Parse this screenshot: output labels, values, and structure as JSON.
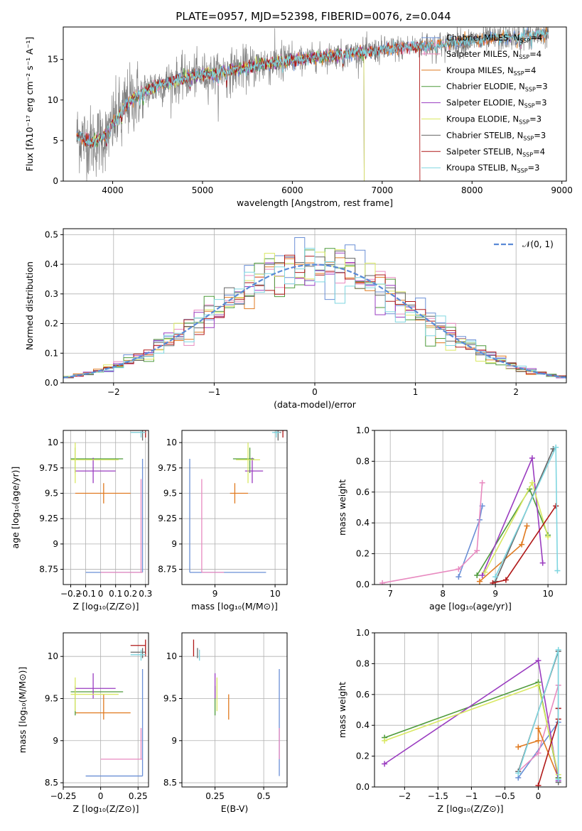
{
  "figure": {
    "title": "PLATE=0957, MJD=52398, FIBERID=0076, z=0.044"
  },
  "colors": {
    "Chabrier MILES": "#6a8fd6",
    "Salpeter MILES": "#e88ac0",
    "Kroupa MILES": "#e07a20",
    "Chabrier ELODIE": "#4d9a3a",
    "Salpeter ELODIE": "#9a3cc0",
    "Kroupa ELODIE": "#d9e862",
    "Chabrier STELIB": "#666666",
    "Salpeter STELIB": "#b01818",
    "Kroupa STELIB": "#7fd6e0",
    "data": "#808080",
    "gaussian": "#5a8ad6"
  },
  "chart_data": [
    {
      "id": "spectrum",
      "type": "line",
      "xlabel": "wavelength [Angstrom, rest frame]",
      "ylabel": "Flux [fλ10⁻¹⁷ erg cm⁻² s⁻¹ A⁻¹]",
      "xlim": [
        3450,
        9050
      ],
      "ylim": [
        0,
        19
      ],
      "xticks": [
        4000,
        5000,
        6000,
        7000,
        8000,
        9000
      ],
      "yticks": [
        0,
        5,
        10,
        15
      ],
      "grid": false,
      "legend_position": "right",
      "continuum": {
        "x": [
          3650,
          3700,
          3800,
          3900,
          4000,
          4100,
          4200,
          4300,
          4400,
          4500,
          4700,
          4900,
          5100,
          5300,
          5500,
          5700,
          5900,
          6100,
          6300,
          6500,
          6700,
          6900,
          7100,
          7300,
          7500,
          7700,
          7900,
          8100,
          8300,
          8500,
          8700,
          8800
        ],
        "y": [
          5.5,
          5.0,
          4.8,
          5.5,
          7.0,
          8.6,
          10.0,
          10.8,
          11.3,
          11.8,
          12.4,
          13.0,
          13.2,
          13.6,
          14.0,
          14.5,
          14.7,
          15.0,
          15.3,
          15.6,
          15.8,
          16.0,
          16.3,
          16.5,
          16.7,
          16.9,
          17.2,
          17.4,
          17.6,
          17.8,
          18.0,
          18.1
        ]
      },
      "legend": [
        {
          "label": "Chabrier MILES, N",
          "sub": "SSP",
          "tail": "=4"
        },
        {
          "label": "Salpeter MILES, N",
          "sub": "SSP",
          "tail": "=4"
        },
        {
          "label": "Kroupa MILES, N",
          "sub": "SSP",
          "tail": "=4"
        },
        {
          "label": "Chabrier ELODIE, N",
          "sub": "SSP",
          "tail": "=3"
        },
        {
          "label": "Salpeter ELODIE, N",
          "sub": "SSP",
          "tail": "=3"
        },
        {
          "label": "Kroupa ELODIE, N",
          "sub": "SSP",
          "tail": "=3"
        },
        {
          "label": "Chabrier STELIB, N",
          "sub": "SSP",
          "tail": "=3"
        },
        {
          "label": "Salpeter STELIB, N",
          "sub": "SSP",
          "tail": "=4"
        },
        {
          "label": "Kroupa STELIB, N",
          "sub": "SSP",
          "tail": "=3"
        }
      ],
      "series": [
        {
          "name": "Chabrier MILES, NSSP=4",
          "x_range": [
            3600,
            8850
          ]
        },
        {
          "name": "Salpeter MILES, NSSP=4",
          "x_range": [
            3600,
            8850
          ]
        },
        {
          "name": "Kroupa MILES, NSSP=4",
          "x_range": [
            3600,
            8850
          ]
        },
        {
          "name": "Chabrier ELODIE, NSSP=3",
          "x_range": [
            3700,
            6800
          ]
        },
        {
          "name": "Salpeter ELODIE, NSSP=3",
          "x_range": [
            3700,
            6800
          ]
        },
        {
          "name": "Kroupa ELODIE, NSSP=3",
          "x_range": [
            3700,
            6800
          ]
        },
        {
          "name": "Chabrier STELIB, NSSP=3",
          "x_range": [
            3600,
            8850
          ]
        },
        {
          "name": "Salpeter STELIB, NSSP=4",
          "x_range": [
            3600,
            7420
          ]
        },
        {
          "name": "Kroupa STELIB, NSSP=3",
          "x_range": [
            3600,
            8850
          ]
        }
      ]
    },
    {
      "id": "residuals",
      "type": "line",
      "xlabel": "(data-model)/error",
      "ylabel": "Normed distribution",
      "xlim": [
        -2.5,
        2.5
      ],
      "ylim": [
        0,
        0.52
      ],
      "xticks": [
        -2,
        -1,
        0,
        1,
        2
      ],
      "yticks": [
        0.0,
        0.1,
        0.2,
        0.3,
        0.4,
        0.5
      ],
      "grid": true,
      "legend_position": "top-right",
      "legend": [
        "𝒩(0, 1)"
      ],
      "bin_width": 0.1,
      "peak_bin": -0.15,
      "peak_value": 0.49
    },
    {
      "id": "age-vs-Z",
      "type": "scatter",
      "xlabel": "Z [log₁₀(Z/Z⊙)]",
      "ylabel": "age  [log₁₀(age/yr)]",
      "xlim": [
        -0.25,
        0.32
      ],
      "ylim": [
        8.6,
        10.12
      ],
      "xticks": [
        -0.2,
        -0.1,
        0.0,
        0.1,
        0.2,
        0.3
      ],
      "yticks": [
        8.75,
        9.0,
        9.25,
        9.5,
        9.75,
        10.0
      ],
      "grid": true
    },
    {
      "id": "age-vs-mass",
      "type": "scatter",
      "xlabel": "mass [log₁₀(M/M⊙)]",
      "ylabel": "",
      "xlim": [
        8.45,
        10.2
      ],
      "ylim": [
        8.6,
        10.12
      ],
      "xticks": [
        9,
        10
      ],
      "yticks": [
        8.75,
        9.0,
        9.25,
        9.5,
        9.75,
        10.0
      ],
      "grid": true
    },
    {
      "id": "weight-vs-age",
      "type": "line",
      "xlabel": "age  [log₁₀(age/yr)]",
      "ylabel": "mass weight",
      "xlim": [
        6.7,
        10.35
      ],
      "ylim": [
        0,
        1
      ],
      "xticks": [
        7,
        8,
        9,
        10
      ],
      "yticks": [
        0.0,
        0.2,
        0.4,
        0.6,
        0.8,
        1.0
      ],
      "grid": true,
      "series": [
        {
          "name": "Chabrier MILES",
          "x": [
            8.3,
            8.7,
            8.75
          ],
          "y": [
            0.05,
            0.42,
            0.51
          ]
        },
        {
          "name": "Salpeter MILES",
          "x": [
            6.85,
            8.3,
            8.65,
            8.75
          ],
          "y": [
            0.01,
            0.1,
            0.22,
            0.66
          ]
        },
        {
          "name": "Kroupa MILES",
          "x": [
            8.7,
            9.5,
            9.6
          ],
          "y": [
            0.02,
            0.26,
            0.38
          ]
        },
        {
          "name": "Chabrier ELODIE",
          "x": [
            8.65,
            9.65,
            10.0
          ],
          "y": [
            0.06,
            0.62,
            0.32
          ]
        },
        {
          "name": "Salpeter ELODIE",
          "x": [
            8.75,
            9.7,
            9.9
          ],
          "y": [
            0.06,
            0.82,
            0.14
          ]
        },
        {
          "name": "Kroupa ELODIE",
          "x": [
            8.8,
            9.7,
            10.0
          ],
          "y": [
            0.08,
            0.66,
            0.31
          ]
        },
        {
          "name": "Chabrier STELIB",
          "x": [
            9.0,
            10.1
          ],
          "y": [
            0.02,
            0.88
          ]
        },
        {
          "name": "Salpeter STELIB",
          "x": [
            8.95,
            9.2,
            10.15
          ],
          "y": [
            0.01,
            0.03,
            0.51
          ]
        },
        {
          "name": "Kroupa STELIB",
          "x": [
            9.0,
            10.15,
            10.18
          ],
          "y": [
            0.05,
            0.89,
            0.09
          ]
        }
      ]
    },
    {
      "id": "mass-vs-Z",
      "type": "scatter",
      "xlabel": "Z [log₁₀(Z/Z⊙)]",
      "ylabel": "mass [log₁₀(M/M⊙)]",
      "xlim": [
        -0.25,
        0.32
      ],
      "ylim": [
        8.45,
        10.28
      ],
      "xticks": [
        -0.25,
        0.0,
        0.25
      ],
      "yticks": [
        8.5,
        9.0,
        9.5,
        10.0
      ],
      "grid": true
    },
    {
      "id": "mass-vs-ebv",
      "type": "scatter",
      "xlabel": "E(B-V)",
      "ylabel": "",
      "xlim": [
        0.08,
        0.62
      ],
      "ylim": [
        8.45,
        10.28
      ],
      "xticks": [
        0.25,
        0.5
      ],
      "yticks": [
        8.5,
        9.0,
        9.5,
        10.0
      ],
      "grid": true
    },
    {
      "id": "weight-vs-Z",
      "type": "line",
      "xlabel": "Z [log₁₀(Z/Z⊙)]",
      "ylabel": "mass weight",
      "xlim": [
        -2.45,
        0.42
      ],
      "ylim": [
        0,
        1
      ],
      "xticks": [
        -2.0,
        -1.5,
        -1.0,
        -0.5,
        0.0
      ],
      "yticks": [
        0.0,
        0.2,
        0.4,
        0.6,
        0.8,
        1.0
      ],
      "grid": true,
      "series": [
        {
          "name": "Chabrier MILES",
          "x": [
            -0.3,
            0.3,
            0.3
          ],
          "y": [
            0.06,
            0.42,
            0.51
          ]
        },
        {
          "name": "Salpeter MILES",
          "x": [
            -0.3,
            0.0,
            0.3
          ],
          "y": [
            0.1,
            0.22,
            0.66
          ]
        },
        {
          "name": "Kroupa MILES",
          "x": [
            -0.3,
            0.0,
            0.0,
            0.3
          ],
          "y": [
            0.26,
            0.3,
            0.38,
            0.06
          ]
        },
        {
          "name": "Chabrier ELODIE",
          "x": [
            -2.3,
            0.0,
            0.3
          ],
          "y": [
            0.32,
            0.68,
            0.06
          ]
        },
        {
          "name": "Salpeter ELODIE",
          "x": [
            -2.3,
            0.0,
            0.3
          ],
          "y": [
            0.15,
            0.82,
            0.04
          ]
        },
        {
          "name": "Kroupa ELODIE",
          "x": [
            -2.3,
            0.0,
            0.3
          ],
          "y": [
            0.3,
            0.66,
            0.08
          ]
        },
        {
          "name": "Chabrier STELIB",
          "x": [
            -0.3,
            0.3,
            0.3
          ],
          "y": [
            0.1,
            0.88,
            0.03
          ]
        },
        {
          "name": "Salpeter STELIB",
          "x": [
            0.0,
            0.3,
            0.3
          ],
          "y": [
            0.01,
            0.44,
            0.51
          ]
        },
        {
          "name": "Kroupa STELIB",
          "x": [
            -0.3,
            0.3,
            0.3
          ],
          "y": [
            0.09,
            0.89,
            0.05
          ]
        }
      ]
    }
  ],
  "ssp_points": [
    {
      "series": "Chabrier MILES",
      "Z": 0.28,
      "Zlo": -0.1,
      "Zhi": 0.28,
      "age": 8.72,
      "alo": 8.72,
      "ahi": 9.84,
      "mass": 8.58,
      "mlo": 8.58,
      "mhi": 9.85,
      "ebv": 0.58
    },
    {
      "series": "Salpeter MILES",
      "Z": 0.27,
      "Zlo": 0.0,
      "Zhi": 0.28,
      "age": 8.72,
      "alo": 8.72,
      "ahi": 9.64,
      "mass": 8.78,
      "mlo": 8.78,
      "mhi": 9.15,
      "ebv": 0.58
    },
    {
      "series": "Kroupa MILES",
      "Z": 0.02,
      "Zlo": -0.17,
      "Zhi": 0.2,
      "age": 9.5,
      "alo": 9.4,
      "ahi": 9.6,
      "mass": 9.33,
      "mlo": 9.25,
      "mhi": 9.55,
      "ebv": 0.32
    },
    {
      "series": "Chabrier ELODIE",
      "Z": -0.17,
      "Zlo": -0.2,
      "Zhi": 0.15,
      "age": 9.84,
      "alo": 9.7,
      "ahi": 9.95,
      "mass": 9.58,
      "mlo": 9.3,
      "mhi": 9.65,
      "ebv": 0.25
    },
    {
      "series": "Salpeter ELODIE",
      "Z": -0.05,
      "Zlo": -0.17,
      "Zhi": 0.1,
      "age": 9.72,
      "alo": 9.6,
      "ahi": 9.85,
      "mass": 9.62,
      "mlo": 9.5,
      "mhi": 9.8,
      "ebv": 0.25
    },
    {
      "series": "Kroupa ELODIE",
      "Z": -0.17,
      "Zlo": -0.2,
      "Zhi": 0.12,
      "age": 9.83,
      "alo": 9.6,
      "ahi": 10.0,
      "mass": 9.55,
      "mlo": 9.35,
      "mhi": 9.75,
      "ebv": 0.26
    },
    {
      "series": "Chabrier STELIB",
      "Z": 0.28,
      "Zlo": 0.2,
      "Zhi": 0.3,
      "age": 10.1,
      "alo": 10.02,
      "ahi": 10.12,
      "mass": 10.05,
      "mlo": 9.98,
      "mhi": 10.1,
      "ebv": 0.16
    },
    {
      "series": "Salpeter STELIB",
      "Z": 0.3,
      "Zlo": 0.2,
      "Zhi": 0.3,
      "age": 10.12,
      "alo": 10.05,
      "ahi": 10.12,
      "mass": 10.13,
      "mlo": 10.0,
      "mhi": 10.2,
      "ebv": 0.14
    },
    {
      "series": "Kroupa STELIB",
      "Z": 0.27,
      "Zlo": 0.2,
      "Zhi": 0.3,
      "age": 10.1,
      "alo": 10.05,
      "ahi": 10.12,
      "mass": 10.02,
      "mlo": 9.95,
      "mhi": 10.08,
      "ebv": 0.17
    }
  ]
}
